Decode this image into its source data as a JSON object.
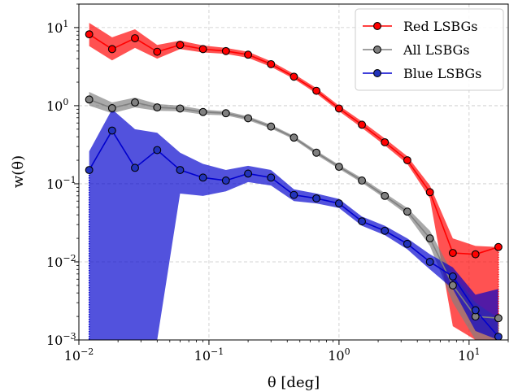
{
  "chart_data": {
    "type": "line",
    "xlabel": "θ [deg]",
    "ylabel": "w(θ)",
    "xscale": "log",
    "yscale": "log",
    "xlim": [
      0.01,
      20
    ],
    "ylim": [
      0.001,
      20
    ],
    "grid": true,
    "legend_position": "top-right",
    "x_ticks": [
      {
        "value": 0.01,
        "base": "10",
        "exp": "−2"
      },
      {
        "value": 0.1,
        "base": "10",
        "exp": "−1"
      },
      {
        "value": 1,
        "base": "10",
        "exp": "0"
      },
      {
        "value": 10,
        "base": "10",
        "exp": "1"
      }
    ],
    "y_ticks": [
      {
        "value": 0.001,
        "base": "10",
        "exp": "−3"
      },
      {
        "value": 0.01,
        "base": "10",
        "exp": "−2"
      },
      {
        "value": 0.1,
        "base": "10",
        "exp": "−1"
      },
      {
        "value": 1,
        "base": "10",
        "exp": "0"
      },
      {
        "value": 10,
        "base": "10",
        "exp": "1"
      }
    ],
    "series": [
      {
        "name": "Red LSBGs",
        "color": "#ff0000",
        "fill_color": "#ff0000",
        "marker_fill": "#ff0000",
        "points": [
          {
            "x": 0.012,
            "y": 8.2,
            "lo": 5.8,
            "hi": 11.5
          },
          {
            "x": 0.018,
            "y": 5.3,
            "lo": 3.8,
            "hi": 7.5
          },
          {
            "x": 0.027,
            "y": 7.3,
            "lo": 5.5,
            "hi": 9.5
          },
          {
            "x": 0.04,
            "y": 4.9,
            "lo": 4.0,
            "hi": 6.0
          },
          {
            "x": 0.06,
            "y": 6.0,
            "lo": 5.3,
            "hi": 6.8
          },
          {
            "x": 0.09,
            "y": 5.3,
            "lo": 4.8,
            "hi": 5.9
          },
          {
            "x": 0.135,
            "y": 5.0,
            "lo": 4.6,
            "hi": 5.5
          },
          {
            "x": 0.2,
            "y": 4.5,
            "lo": 4.1,
            "hi": 4.9
          },
          {
            "x": 0.3,
            "y": 3.4,
            "lo": 3.15,
            "hi": 3.7
          },
          {
            "x": 0.45,
            "y": 2.35,
            "lo": 2.2,
            "hi": 2.55
          },
          {
            "x": 0.67,
            "y": 1.55,
            "lo": 1.43,
            "hi": 1.68
          },
          {
            "x": 1.0,
            "y": 0.92,
            "lo": 0.85,
            "hi": 1.0
          },
          {
            "x": 1.5,
            "y": 0.57,
            "lo": 0.52,
            "hi": 0.63
          },
          {
            "x": 2.25,
            "y": 0.34,
            "lo": 0.31,
            "hi": 0.38
          },
          {
            "x": 3.35,
            "y": 0.2,
            "lo": 0.18,
            "hi": 0.225
          },
          {
            "x": 5.0,
            "y": 0.078,
            "lo": 0.065,
            "hi": 0.095
          },
          {
            "x": 7.5,
            "y": 0.013,
            "lo": 0.0015,
            "hi": 0.02
          },
          {
            "x": 11.2,
            "y": 0.0125,
            "lo": 0.001,
            "hi": 0.016
          },
          {
            "x": 16.8,
            "y": 0.0155,
            "lo": 0.001,
            "hi": 0.0155
          }
        ]
      },
      {
        "name": "All LSBGs",
        "color": "#808080",
        "fill_color": "#808080",
        "marker_fill": "#808080",
        "points": [
          {
            "x": 0.012,
            "y": 1.2,
            "lo": 1.0,
            "hi": 1.5
          },
          {
            "x": 0.018,
            "y": 0.93,
            "lo": 0.8,
            "hi": 1.1
          },
          {
            "x": 0.027,
            "y": 1.1,
            "lo": 0.95,
            "hi": 1.27
          },
          {
            "x": 0.04,
            "y": 0.95,
            "lo": 0.86,
            "hi": 1.05
          },
          {
            "x": 0.06,
            "y": 0.92,
            "lo": 0.85,
            "hi": 1.0
          },
          {
            "x": 0.09,
            "y": 0.83,
            "lo": 0.77,
            "hi": 0.89
          },
          {
            "x": 0.135,
            "y": 0.8,
            "lo": 0.75,
            "hi": 0.85
          },
          {
            "x": 0.2,
            "y": 0.69,
            "lo": 0.65,
            "hi": 0.73
          },
          {
            "x": 0.3,
            "y": 0.54,
            "lo": 0.51,
            "hi": 0.57
          },
          {
            "x": 0.45,
            "y": 0.39,
            "lo": 0.37,
            "hi": 0.41
          },
          {
            "x": 0.67,
            "y": 0.25,
            "lo": 0.235,
            "hi": 0.265
          },
          {
            "x": 1.0,
            "y": 0.165,
            "lo": 0.155,
            "hi": 0.175
          },
          {
            "x": 1.5,
            "y": 0.11,
            "lo": 0.103,
            "hi": 0.118
          },
          {
            "x": 2.25,
            "y": 0.07,
            "lo": 0.065,
            "hi": 0.076
          },
          {
            "x": 3.35,
            "y": 0.044,
            "lo": 0.04,
            "hi": 0.049
          },
          {
            "x": 5.0,
            "y": 0.02,
            "lo": 0.016,
            "hi": 0.025
          },
          {
            "x": 7.5,
            "y": 0.005,
            "lo": 0.003,
            "hi": 0.007
          },
          {
            "x": 11.2,
            "y": 0.002,
            "lo": 0.001,
            "hi": 0.003
          },
          {
            "x": 16.8,
            "y": 0.0019,
            "lo": 0.001,
            "hi": 0.0019
          }
        ]
      },
      {
        "name": "Blue LSBGs",
        "color": "#0000cd",
        "fill_color": "#0000cd",
        "marker_fill": "#2233bb",
        "points": [
          {
            "x": 0.012,
            "y": 0.15,
            "lo": 0.001,
            "hi": 0.26
          },
          {
            "x": 0.018,
            "y": 0.48,
            "lo": 0.001,
            "hi": 0.9
          },
          {
            "x": 0.027,
            "y": 0.16,
            "lo": 0.001,
            "hi": 0.5
          },
          {
            "x": 0.04,
            "y": 0.27,
            "lo": 0.001,
            "hi": 0.45
          },
          {
            "x": 0.06,
            "y": 0.15,
            "lo": 0.075,
            "hi": 0.25
          },
          {
            "x": 0.09,
            "y": 0.12,
            "lo": 0.07,
            "hi": 0.18
          },
          {
            "x": 0.135,
            "y": 0.11,
            "lo": 0.08,
            "hi": 0.15
          },
          {
            "x": 0.2,
            "y": 0.135,
            "lo": 0.105,
            "hi": 0.17
          },
          {
            "x": 0.3,
            "y": 0.12,
            "lo": 0.095,
            "hi": 0.15
          },
          {
            "x": 0.45,
            "y": 0.072,
            "lo": 0.06,
            "hi": 0.085
          },
          {
            "x": 0.67,
            "y": 0.065,
            "lo": 0.056,
            "hi": 0.075
          },
          {
            "x": 1.0,
            "y": 0.056,
            "lo": 0.049,
            "hi": 0.064
          },
          {
            "x": 1.5,
            "y": 0.033,
            "lo": 0.029,
            "hi": 0.038
          },
          {
            "x": 2.25,
            "y": 0.025,
            "lo": 0.022,
            "hi": 0.029
          },
          {
            "x": 3.35,
            "y": 0.017,
            "lo": 0.0145,
            "hi": 0.02
          },
          {
            "x": 5.0,
            "y": 0.01,
            "lo": 0.008,
            "hi": 0.0125
          },
          {
            "x": 7.5,
            "y": 0.0065,
            "lo": 0.0045,
            "hi": 0.0085
          },
          {
            "x": 11.2,
            "y": 0.0024,
            "lo": 0.0013,
            "hi": 0.0038
          },
          {
            "x": 16.8,
            "y": 0.0011,
            "lo": 0.001,
            "hi": 0.0045
          }
        ]
      }
    ]
  }
}
